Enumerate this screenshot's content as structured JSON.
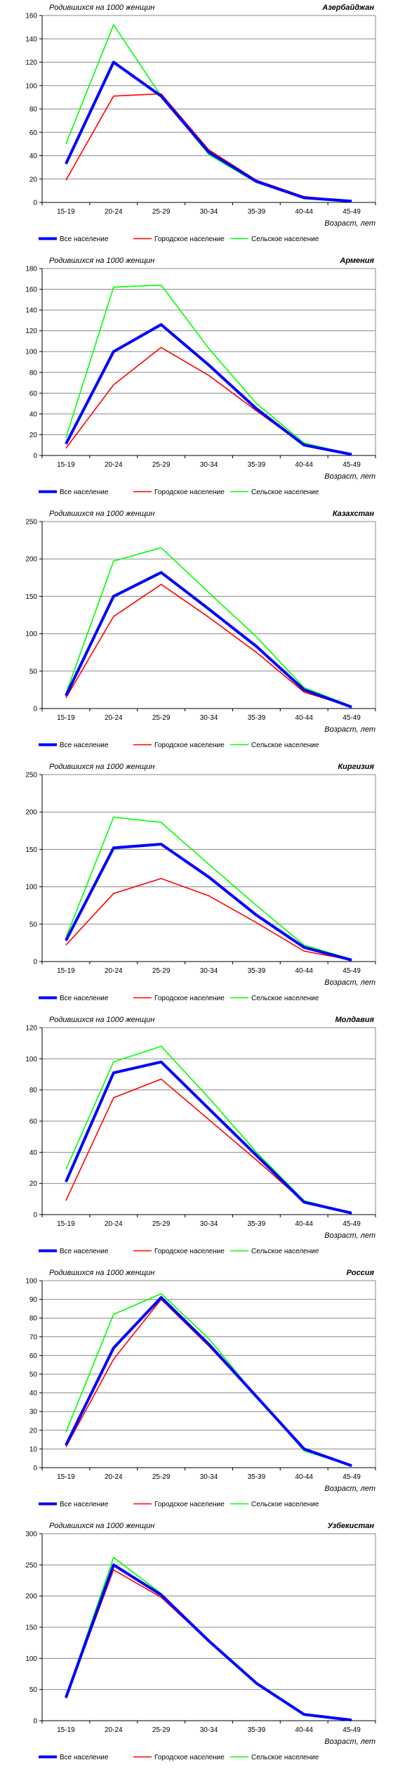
{
  "chart_data": [
    {
      "type": "line",
      "title": "Азербайджан",
      "ylabel": "Родившихся на 1000 женщин",
      "xlabel": "Возраст, лет",
      "categories": [
        "15-19",
        "20-24",
        "25-29",
        "30-34",
        "35-39",
        "40-44",
        "45-49"
      ],
      "ylim": [
        0,
        160
      ],
      "yticks": [
        0,
        20,
        40,
        60,
        80,
        100,
        120,
        140,
        160
      ],
      "grid": true,
      "legend": "bottom",
      "series": [
        {
          "name": "Все население",
          "color": "#0000ff",
          "values": [
            33,
            120,
            91,
            43,
            18,
            4,
            1
          ]
        },
        {
          "name": "Городское население",
          "color": "#ff0000",
          "values": [
            19,
            91,
            93,
            45,
            19,
            5,
            1
          ]
        },
        {
          "name": "Сельское население",
          "color": "#00ff00",
          "values": [
            50,
            152,
            91,
            41,
            17,
            4,
            1
          ]
        }
      ]
    },
    {
      "type": "line",
      "title": "Армения",
      "ylabel": "Родившихся на 1000 женщин",
      "xlabel": "Возраст, лет",
      "categories": [
        "15-19",
        "20-24",
        "25-29",
        "30-34",
        "35-39",
        "40-44",
        "45-49"
      ],
      "ylim": [
        0,
        180
      ],
      "yticks": [
        0,
        20,
        40,
        60,
        80,
        100,
        120,
        140,
        160,
        180
      ],
      "grid": true,
      "legend": "bottom",
      "series": [
        {
          "name": "Все население",
          "color": "#0000ff",
          "values": [
            11,
            100,
            126,
            87,
            45,
            10,
            1
          ]
        },
        {
          "name": "Городское население",
          "color": "#ff0000",
          "values": [
            7,
            68,
            104,
            77,
            43,
            10,
            1
          ]
        },
        {
          "name": "Сельское население",
          "color": "#00ff00",
          "values": [
            17,
            162,
            164,
            103,
            50,
            12,
            1
          ]
        }
      ]
    },
    {
      "type": "line",
      "title": "Казахстан",
      "ylabel": "Родившихся на 1000 женщин",
      "xlabel": "Возраст, лет",
      "categories": [
        "15-19",
        "20-24",
        "25-29",
        "30-34",
        "35-39",
        "40-44",
        "45-49"
      ],
      "ylim": [
        0,
        250
      ],
      "yticks": [
        0,
        50,
        100,
        150,
        200,
        250
      ],
      "grid": true,
      "legend": "bottom",
      "series": [
        {
          "name": "Все население",
          "color": "#0000ff",
          "values": [
            17,
            150,
            182,
            133,
            83,
            25,
            2
          ]
        },
        {
          "name": "Городское население",
          "color": "#ff0000",
          "values": [
            14,
            123,
            166,
            122,
            75,
            22,
            2
          ]
        },
        {
          "name": "Сельское население",
          "color": "#00ff00",
          "values": [
            20,
            197,
            215,
            155,
            96,
            28,
            3
          ]
        }
      ]
    },
    {
      "type": "line",
      "title": "Киргизия",
      "ylabel": "Родившихся на 1000 женщин",
      "xlabel": "Возраст, лет",
      "categories": [
        "15-19",
        "20-24",
        "25-29",
        "30-34",
        "35-39",
        "40-44",
        "45-49"
      ],
      "ylim": [
        0,
        250
      ],
      "yticks": [
        0,
        50,
        100,
        150,
        200,
        250
      ],
      "grid": true,
      "legend": "bottom",
      "series": [
        {
          "name": "Все население",
          "color": "#0000ff",
          "values": [
            28,
            152,
            157,
            113,
            62,
            19,
            2
          ]
        },
        {
          "name": "Городское население",
          "color": "#ff0000",
          "values": [
            22,
            91,
            111,
            88,
            52,
            14,
            2
          ]
        },
        {
          "name": "Сельское население",
          "color": "#00ff00",
          "values": [
            32,
            193,
            186,
            130,
            75,
            22,
            3
          ]
        }
      ]
    },
    {
      "type": "line",
      "title": "Молдавия",
      "ylabel": "Родившихся на 1000 женщин",
      "xlabel": "Возраст, лет",
      "categories": [
        "15-19",
        "20-24",
        "25-29",
        "30-34",
        "35-39",
        "40-44",
        "45-49"
      ],
      "ylim": [
        0,
        120
      ],
      "yticks": [
        0,
        20,
        40,
        60,
        80,
        100,
        120
      ],
      "grid": true,
      "legend": "bottom",
      "series": [
        {
          "name": "Все население",
          "color": "#0000ff",
          "values": [
            21,
            91,
            98,
            68,
            38,
            8,
            1
          ]
        },
        {
          "name": "Городское население",
          "color": "#ff0000",
          "values": [
            9,
            75,
            87,
            61,
            35,
            8,
            1
          ]
        },
        {
          "name": "Сельское население",
          "color": "#00ff00",
          "values": [
            29,
            98,
            108,
            75,
            40,
            9,
            1
          ]
        }
      ]
    },
    {
      "type": "line",
      "title": "Россия",
      "ylabel": "Родившихся на 1000 женщин",
      "xlabel": "Возраст, лет",
      "categories": [
        "15-19",
        "20-24",
        "25-29",
        "30-34",
        "35-39",
        "40-44",
        "45-49"
      ],
      "ylim": [
        0,
        100
      ],
      "yticks": [
        0,
        10,
        20,
        30,
        40,
        50,
        60,
        70,
        80,
        90,
        100
      ],
      "grid": true,
      "legend": "bottom",
      "series": [
        {
          "name": "Все население",
          "color": "#0000ff",
          "values": [
            12,
            64,
            91,
            66,
            38,
            10,
            1
          ]
        },
        {
          "name": "Городское население",
          "color": "#ff0000",
          "values": [
            11,
            58,
            90,
            65,
            38,
            10,
            1
          ]
        },
        {
          "name": "Сельское население",
          "color": "#00ff00",
          "values": [
            19,
            82,
            93,
            69,
            38,
            9,
            1
          ]
        }
      ]
    },
    {
      "type": "line",
      "title": "Узбекистан",
      "ylabel": "Родившихся на 1000 женщин",
      "xlabel": "Возраст, лет",
      "categories": [
        "15-19",
        "20-24",
        "25-29",
        "30-34",
        "35-39",
        "40-44",
        "45-49"
      ],
      "ylim": [
        0,
        300
      ],
      "yticks": [
        0,
        50,
        100,
        150,
        200,
        250,
        300
      ],
      "grid": true,
      "legend": "bottom",
      "series": [
        {
          "name": "Все население",
          "color": "#0000ff",
          "values": [
            37,
            250,
            202,
            128,
            60,
            10,
            1
          ]
        },
        {
          "name": "Городское население",
          "color": "#ff0000",
          "values": [
            36,
            242,
            198,
            127,
            60,
            9,
            1
          ]
        },
        {
          "name": "Сельское население",
          "color": "#00ff00",
          "values": [
            38,
            262,
            204,
            129,
            59,
            10,
            1
          ]
        }
      ]
    }
  ]
}
